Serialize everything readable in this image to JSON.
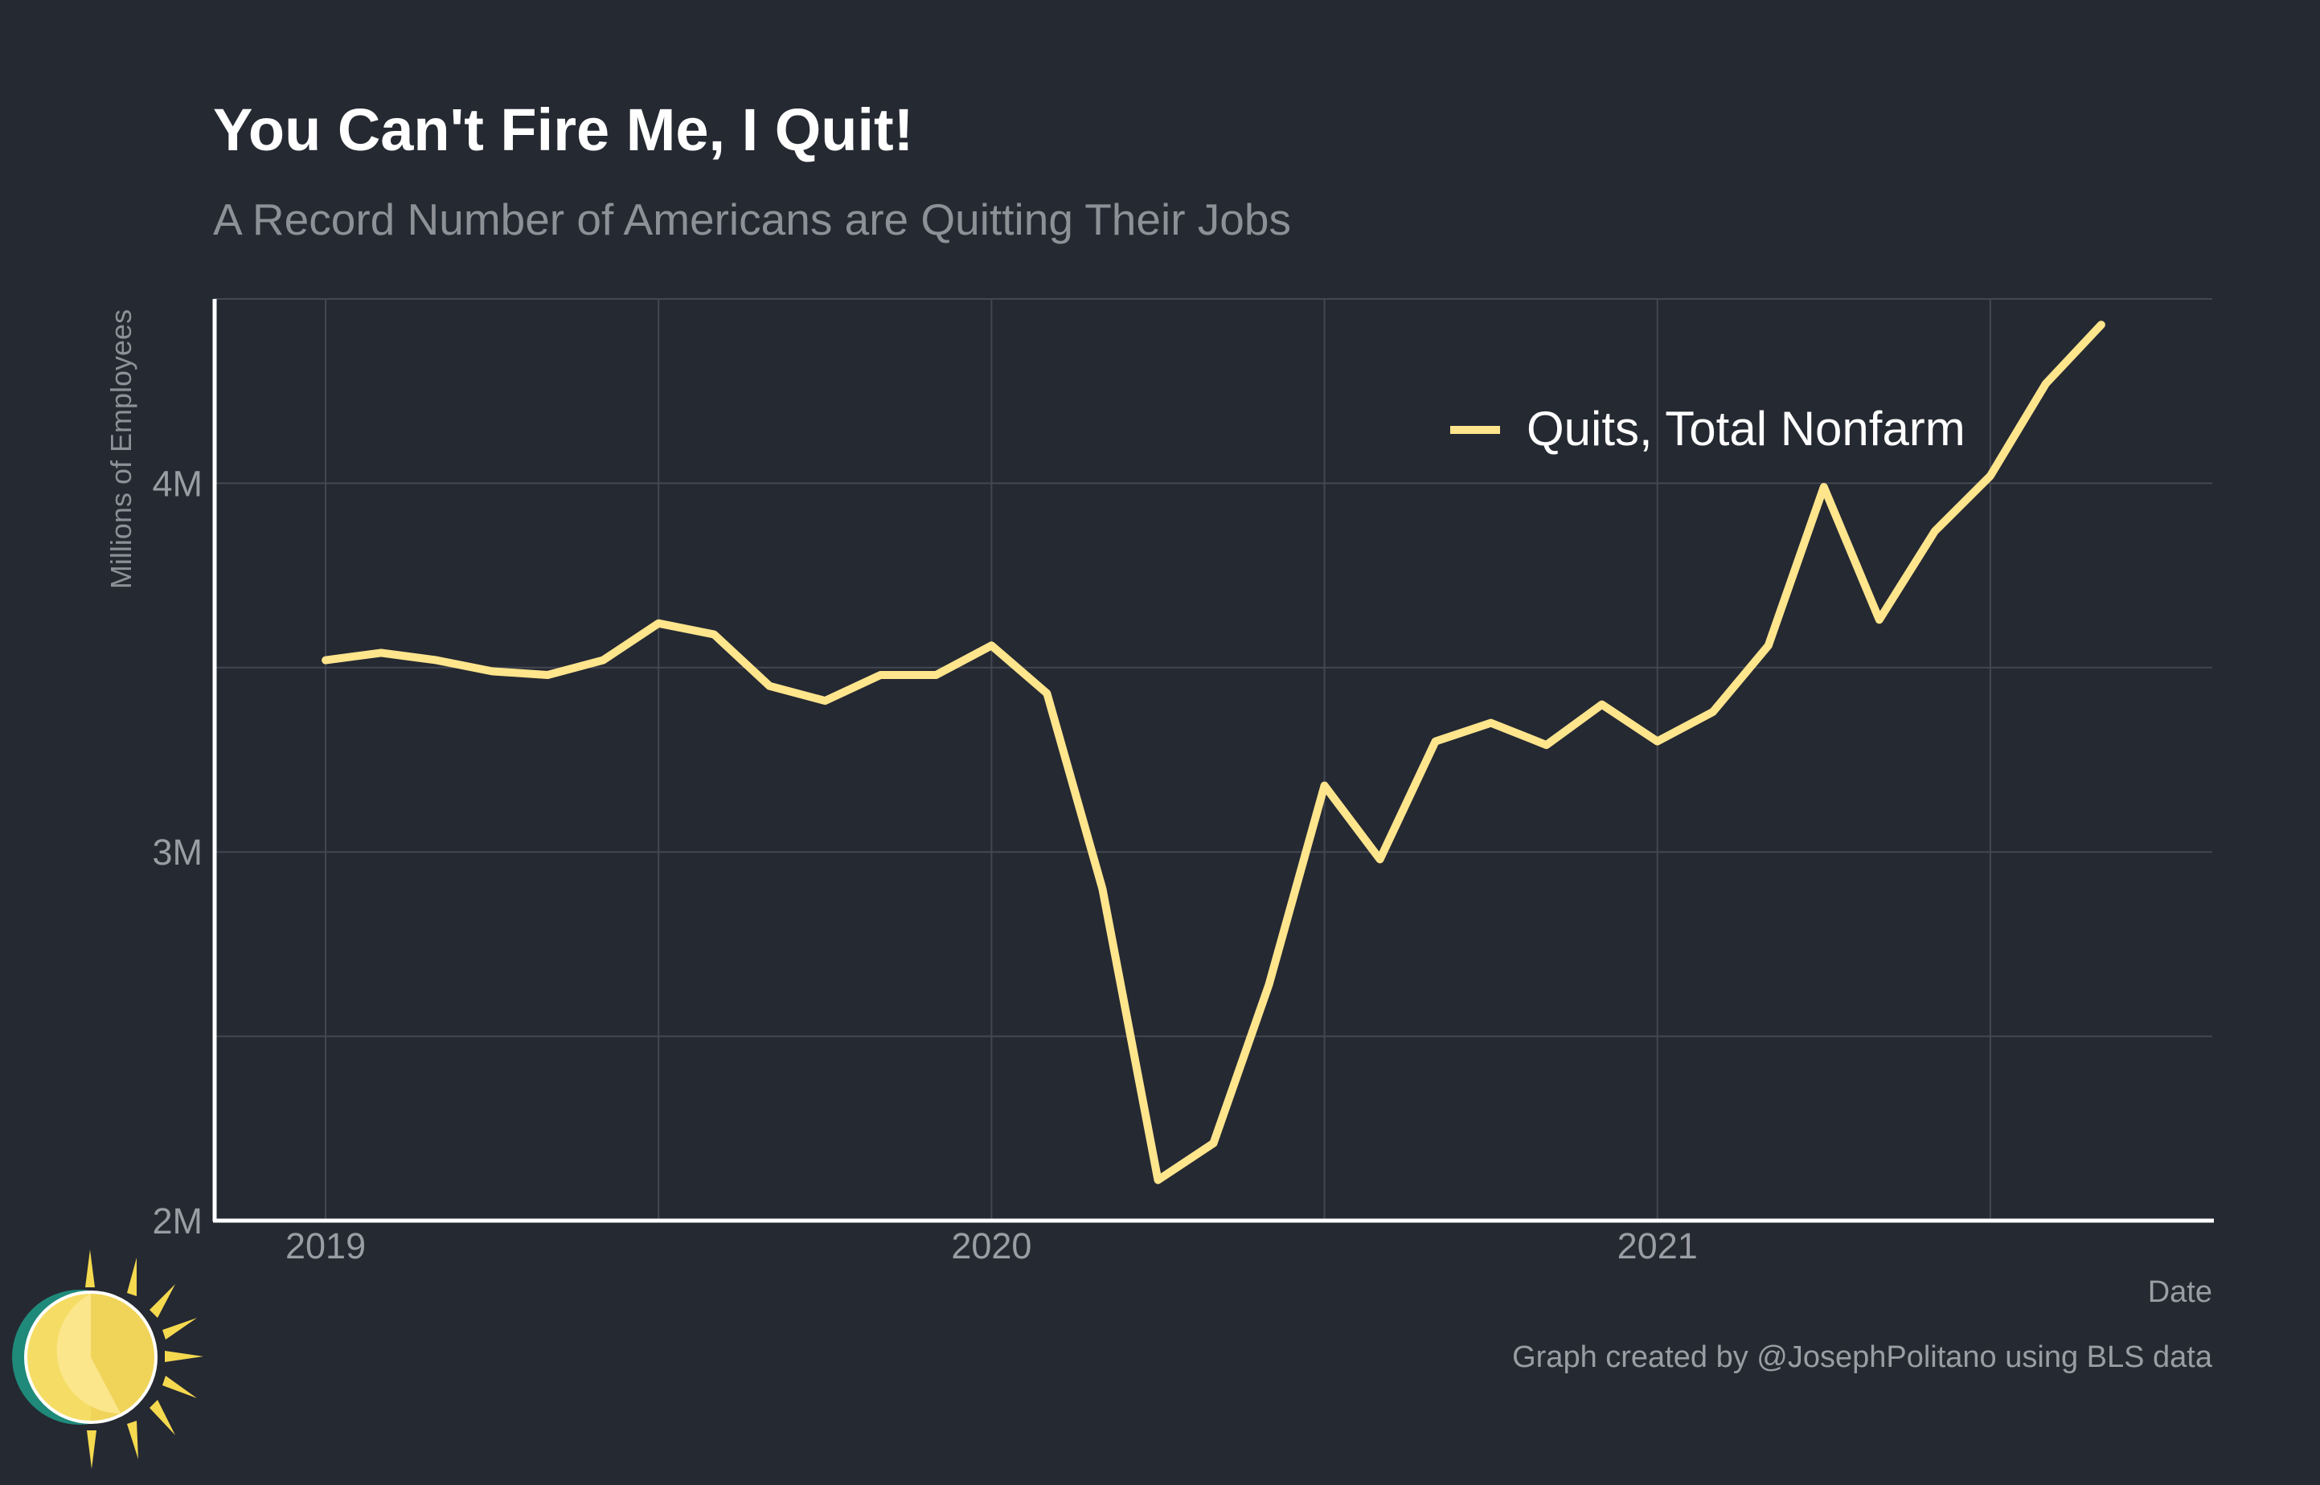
{
  "chart_data": {
    "type": "line",
    "title": "You Can't Fire Me, I Quit!",
    "subtitle": "A Record Number of Americans are Quitting Their Jobs",
    "xlabel": "Date",
    "ylabel": "Millions of Employees",
    "caption": "Graph created by @JosephPolitano using BLS data",
    "ylim": [
      2.0,
      4.5
    ],
    "xlim": [
      "2018-11",
      "2021-11"
    ],
    "y_ticks": [
      2,
      3,
      4
    ],
    "y_tick_labels": [
      "2M",
      "3M",
      "4M"
    ],
    "x_ticks": [
      "2019-01",
      "2020-01",
      "2021-01"
    ],
    "x_tick_labels": [
      "2019",
      "2020",
      "2021"
    ],
    "grid": true,
    "legend_position": "top-right",
    "series": [
      {
        "name": "Quits, Total Nonfarm",
        "color": "#ffe58c",
        "x": [
          "2019-01",
          "2019-02",
          "2019-03",
          "2019-04",
          "2019-05",
          "2019-06",
          "2019-07",
          "2019-08",
          "2019-09",
          "2019-10",
          "2019-11",
          "2019-12",
          "2020-01",
          "2020-02",
          "2020-03",
          "2020-04",
          "2020-05",
          "2020-06",
          "2020-07",
          "2020-08",
          "2020-09",
          "2020-10",
          "2020-11",
          "2020-12",
          "2021-01",
          "2021-02",
          "2021-03",
          "2021-04",
          "2021-05",
          "2021-06",
          "2021-07",
          "2021-08",
          "2021-09"
        ],
        "values": [
          3.52,
          3.54,
          3.52,
          3.49,
          3.48,
          3.52,
          3.62,
          3.59,
          3.45,
          3.41,
          3.48,
          3.48,
          3.56,
          3.43,
          2.9,
          2.11,
          2.21,
          2.64,
          3.18,
          2.98,
          3.3,
          3.35,
          3.29,
          3.4,
          3.3,
          3.38,
          3.56,
          3.99,
          3.63,
          3.87,
          4.02,
          4.27,
          4.43
        ]
      }
    ]
  },
  "colors": {
    "background": "#252932",
    "grid": "#434751",
    "axis": "#ffffff",
    "title": "#ffffff",
    "subtitle": "#8d9096",
    "tick_label": "#9a9da3",
    "line": "#ffe58c"
  },
  "logo": {
    "icon": "sun-icon"
  }
}
